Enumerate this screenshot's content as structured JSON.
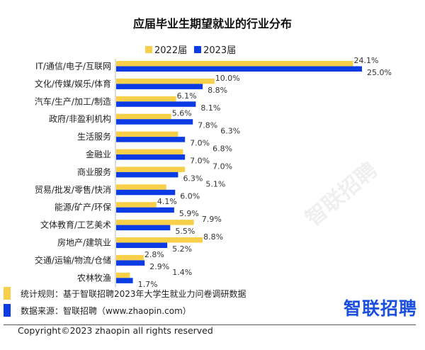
{
  "colors": {
    "y2022": "#F8CF48",
    "y2023": "#0B3BE3"
  },
  "footer": {
    "rule": "统计规则：基于智联招聘2023年大学生就业力问卷调研数据",
    "source": "数据来源：智联招聘（www.zhaopin.com）",
    "logo": "智联招聘",
    "copyright": "Copyright©2023 zhaopin all rights reserved"
  },
  "watermark": "智联招聘",
  "chart_data": {
    "type": "bar",
    "orientation": "horizontal",
    "title": "应届毕业生期望就业的行业分布",
    "categories": [
      "IT/通信/电子/互联网",
      "文化/传媒/娱乐/体育",
      "汽车/生产/加工/制造",
      "政府/非盈利机构",
      "生活服务",
      "金融业",
      "商业服务",
      "贸易/批发/零售/快消",
      "能源/矿产/环保",
      "文体教育/工艺美术",
      "房地产/建筑业",
      "交通/运输/物流/仓储",
      "农林牧渔"
    ],
    "series": [
      {
        "name": "2022届",
        "values": [
          24.1,
          10.0,
          6.1,
          5.6,
          6.3,
          6.8,
          7.0,
          5.1,
          4.1,
          7.9,
          8.8,
          2.8,
          1.4
        ]
      },
      {
        "name": "2023届",
        "values": [
          25.0,
          8.8,
          8.1,
          7.8,
          7.0,
          7.0,
          6.3,
          6.0,
          5.9,
          5.5,
          5.2,
          2.9,
          1.7
        ]
      }
    ],
    "unit": "%",
    "xlim": [
      0,
      26
    ],
    "legend": "top",
    "grid": false
  }
}
